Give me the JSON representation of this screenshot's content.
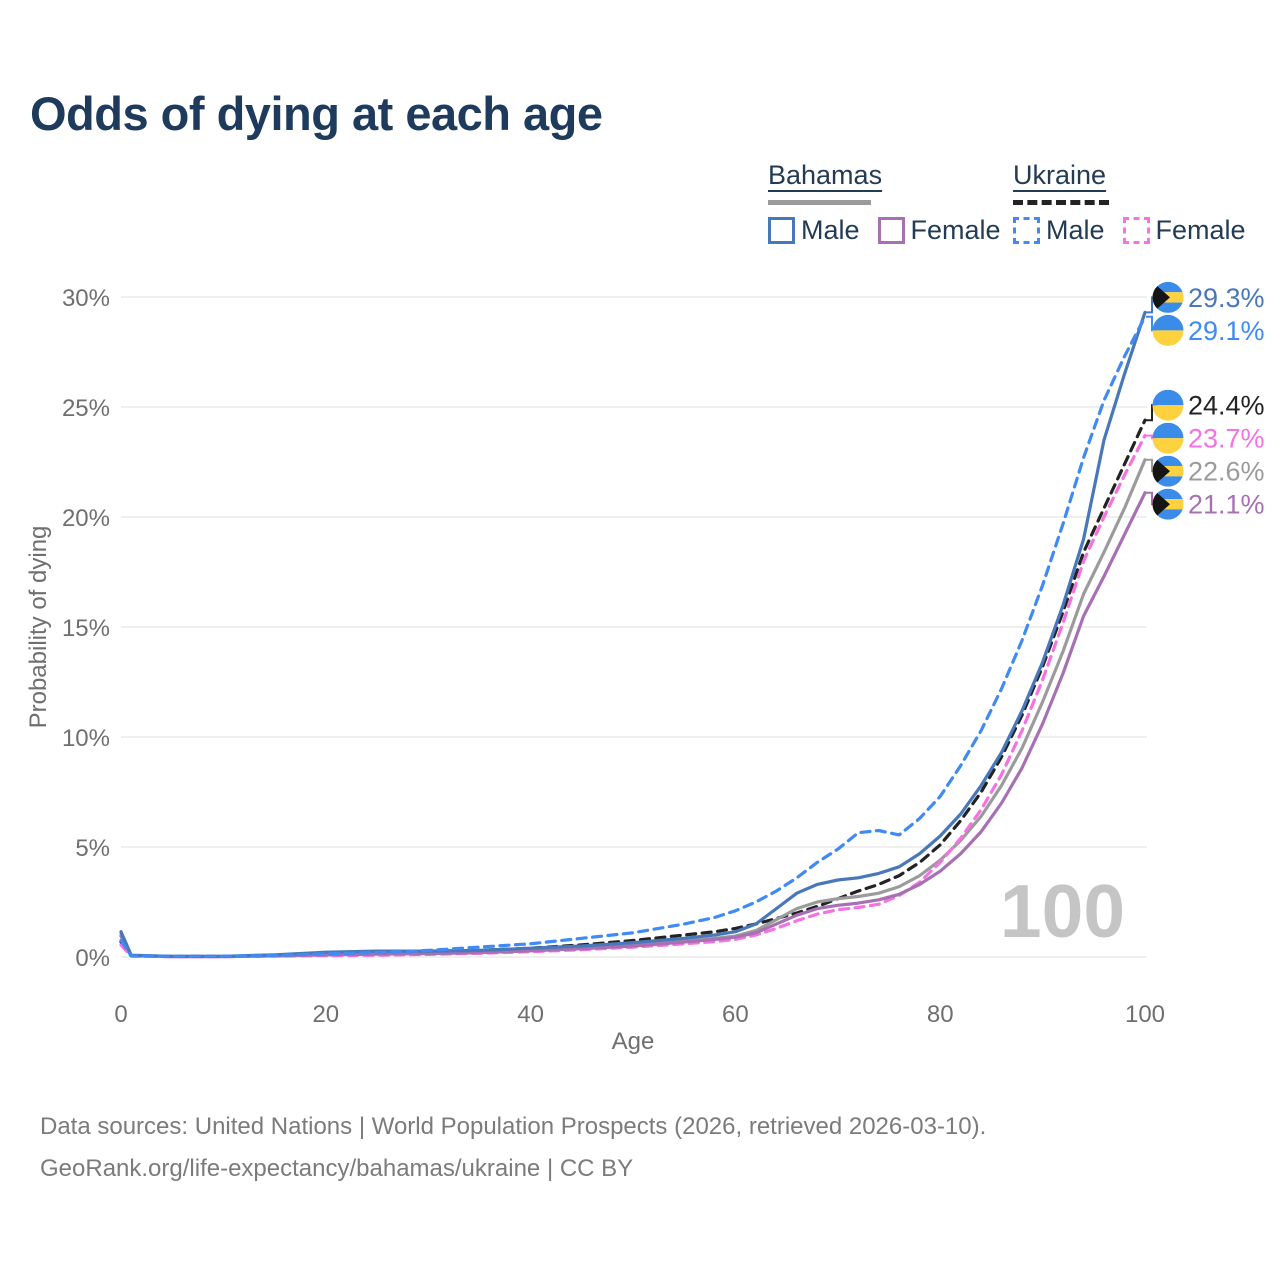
{
  "title": "Odds of dying at each age",
  "watermark": "100",
  "legend": {
    "groups": [
      {
        "country": "Bahamas",
        "style": "solid",
        "items": [
          {
            "label": "Male"
          },
          {
            "label": "Female"
          }
        ]
      },
      {
        "country": "Ukraine",
        "style": "dashed",
        "items": [
          {
            "label": "Male"
          },
          {
            "label": "Female"
          }
        ]
      }
    ]
  },
  "footer": {
    "line1": "Data sources: United Nations | World Population Prospects (2026, retrieved 2026-03-10).",
    "line2": "GeoRank.org/life-expectancy/bahamas/ukraine | CC BY"
  },
  "chart_data": {
    "type": "line",
    "title": "Odds of dying at each age",
    "xlabel": "Age",
    "ylabel": "Probability of dying",
    "xlim": [
      0,
      100
    ],
    "ylim": [
      0,
      30
    ],
    "grid": "horizontal-only",
    "x_ticks": [
      0,
      20,
      40,
      60,
      80,
      100
    ],
    "y_tick_values": [
      0,
      5,
      10,
      15,
      20,
      25,
      30
    ],
    "y_ticks": [
      "0%",
      "5%",
      "10%",
      "15%",
      "20%",
      "25%",
      "30%"
    ],
    "ages": [
      0,
      1,
      5,
      10,
      15,
      20,
      25,
      30,
      35,
      40,
      45,
      50,
      55,
      58,
      60,
      62,
      64,
      66,
      68,
      70,
      72,
      74,
      76,
      78,
      80,
      82,
      84,
      86,
      88,
      90,
      92,
      94,
      96,
      98,
      100
    ],
    "series": [
      {
        "name": "Ukraine Both sexes",
        "country": "Ukraine",
        "sex": "Both",
        "color": "#232323",
        "dash": true,
        "end_label": "24.4%",
        "values": [
          0.68,
          0.05,
          0.03,
          0.03,
          0.05,
          0.1,
          0.15,
          0.2,
          0.3,
          0.4,
          0.55,
          0.75,
          1.0,
          1.15,
          1.3,
          1.5,
          1.75,
          2.0,
          2.3,
          2.65,
          3.0,
          3.3,
          3.7,
          4.3,
          5.1,
          6.2,
          7.5,
          9.1,
          11.0,
          13.2,
          15.7,
          18.4,
          20.4,
          22.4,
          24.4
        ]
      },
      {
        "name": "Bahamas Both sexes",
        "country": "Bahamas",
        "sex": "Both",
        "color": "#9b9b9b",
        "dash": false,
        "end_label": "22.6%",
        "values": [
          1.05,
          0.07,
          0.03,
          0.03,
          0.08,
          0.18,
          0.22,
          0.22,
          0.25,
          0.33,
          0.42,
          0.55,
          0.72,
          0.85,
          0.95,
          1.2,
          1.7,
          2.2,
          2.5,
          2.65,
          2.75,
          2.9,
          3.2,
          3.7,
          4.4,
          5.3,
          6.4,
          7.8,
          9.5,
          11.6,
          13.9,
          16.5,
          18.4,
          20.4,
          22.6
        ]
      },
      {
        "name": "Ukraine Female",
        "country": "Ukraine",
        "sex": "Female",
        "color": "#f671e1",
        "dash": true,
        "end_label": "23.7%",
        "values": [
          0.55,
          0.04,
          0.02,
          0.02,
          0.04,
          0.06,
          0.08,
          0.12,
          0.17,
          0.24,
          0.33,
          0.45,
          0.6,
          0.7,
          0.8,
          1.0,
          1.3,
          1.65,
          1.95,
          2.15,
          2.25,
          2.4,
          2.8,
          3.4,
          4.3,
          5.4,
          6.7,
          8.3,
          10.3,
          12.6,
          15.2,
          18.0,
          20.0,
          21.9,
          23.7
        ]
      },
      {
        "name": "Bahamas Female",
        "country": "Bahamas",
        "sex": "Female",
        "color": "#a770b3",
        "dash": false,
        "end_label": "21.1%",
        "values": [
          0.95,
          0.06,
          0.02,
          0.02,
          0.05,
          0.1,
          0.13,
          0.15,
          0.2,
          0.28,
          0.38,
          0.5,
          0.68,
          0.8,
          0.9,
          1.1,
          1.5,
          1.9,
          2.2,
          2.35,
          2.45,
          2.6,
          2.85,
          3.3,
          3.9,
          4.7,
          5.7,
          7.0,
          8.6,
          10.6,
          12.9,
          15.5,
          17.3,
          19.2,
          21.1
        ]
      },
      {
        "name": "Bahamas Male",
        "country": "Bahamas",
        "sex": "Male",
        "color": "#4878ba",
        "dash": false,
        "end_label": "29.3%",
        "values": [
          1.15,
          0.08,
          0.03,
          0.03,
          0.1,
          0.22,
          0.27,
          0.27,
          0.3,
          0.4,
          0.5,
          0.65,
          0.85,
          1.0,
          1.15,
          1.5,
          2.2,
          2.9,
          3.3,
          3.5,
          3.6,
          3.8,
          4.1,
          4.7,
          5.5,
          6.5,
          7.8,
          9.3,
          11.2,
          13.4,
          16.0,
          19.0,
          23.5,
          26.5,
          29.3
        ]
      },
      {
        "name": "Ukraine Male",
        "country": "Ukraine",
        "sex": "Male",
        "color": "#3f8af4",
        "dash": true,
        "end_label": "29.1%",
        "values": [
          0.75,
          0.05,
          0.03,
          0.03,
          0.07,
          0.15,
          0.2,
          0.3,
          0.45,
          0.6,
          0.85,
          1.1,
          1.5,
          1.8,
          2.1,
          2.5,
          3.0,
          3.6,
          4.3,
          4.9,
          5.65,
          5.75,
          5.55,
          6.3,
          7.3,
          8.7,
          10.3,
          12.2,
          14.4,
          16.9,
          19.7,
          22.7,
          25.3,
          27.3,
          29.1
        ]
      }
    ],
    "flag_colors": {
      "blue": "#3b8ce8",
      "yellow": "#fdd23e",
      "black": "#151515"
    }
  }
}
